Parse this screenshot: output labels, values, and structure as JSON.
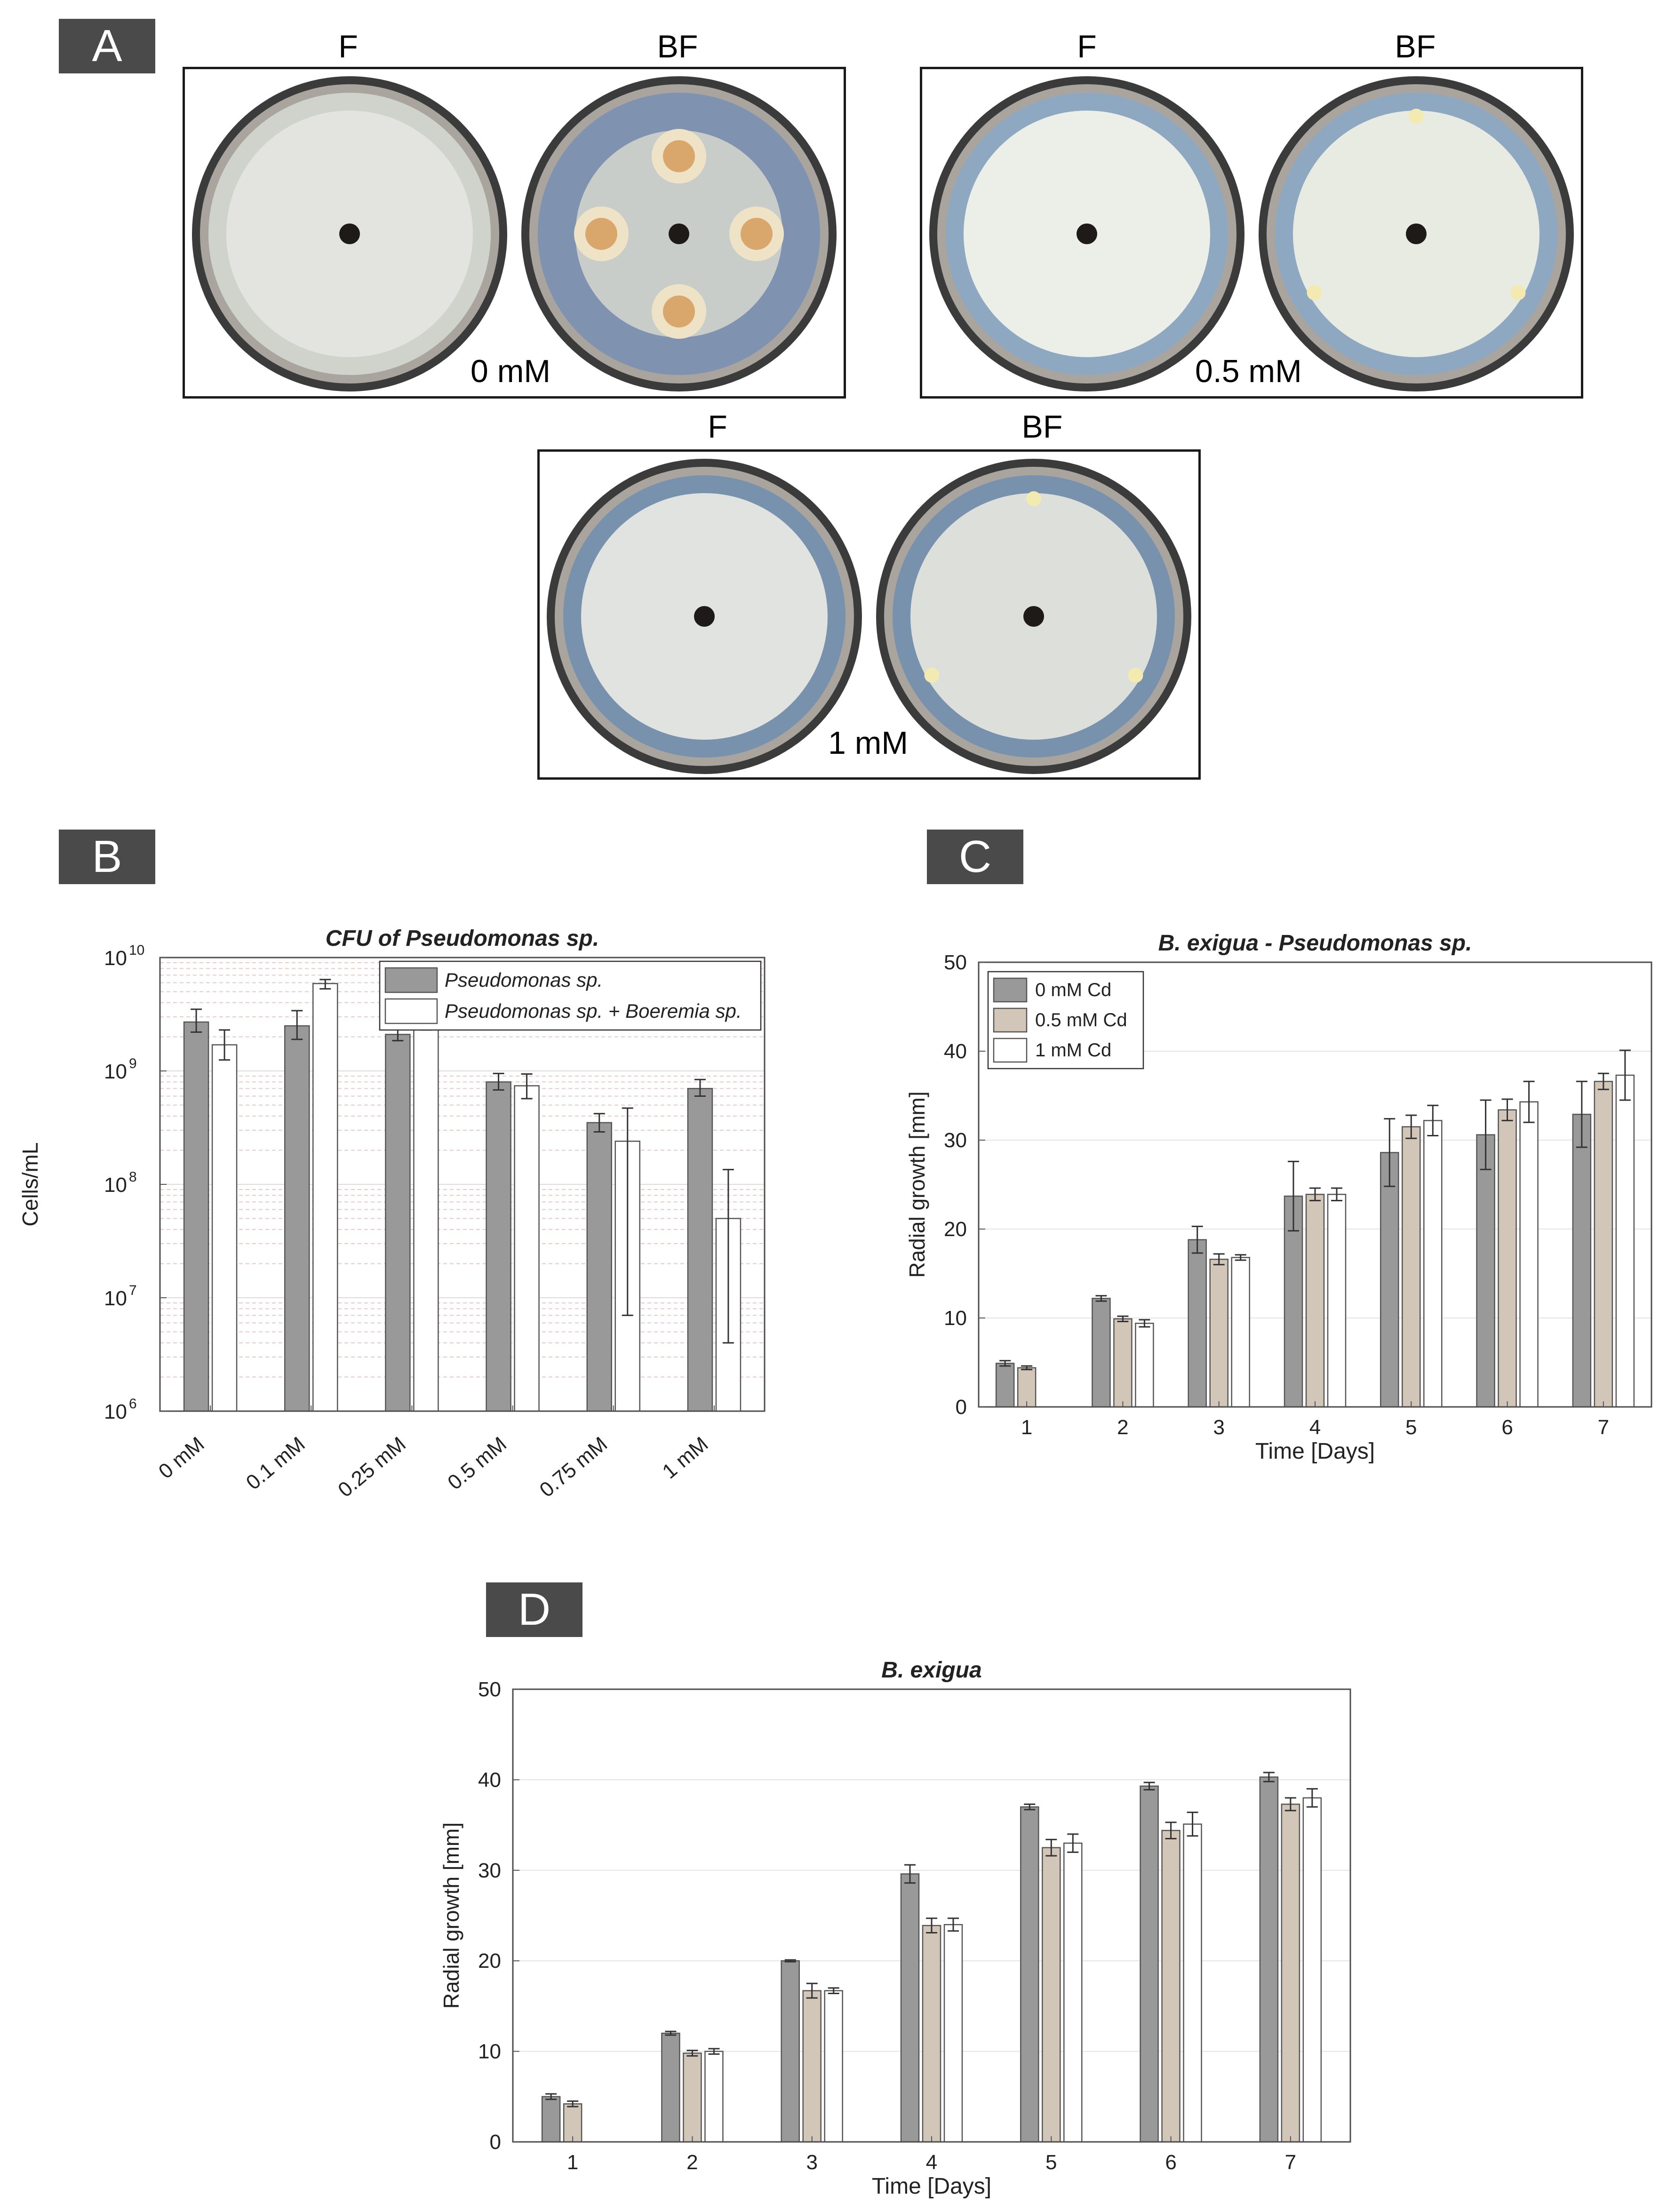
{
  "panels": {
    "A": {
      "tag": "A",
      "groups": [
        {
          "concentration": "0 mM",
          "plates": [
            {
              "label": "F",
              "colonies": 0,
              "agar": "#cfd3cc",
              "mycelium": "#e4e5df"
            },
            {
              "label": "BF",
              "colonies": 4,
              "agar": "#7f93b1",
              "mycelium": "#cdd0cb"
            }
          ]
        },
        {
          "concentration": "0.5 mM",
          "plates": [
            {
              "label": "F",
              "colonies": 0,
              "agar": "#8fa8c2",
              "mycelium": "#f1f2ea"
            },
            {
              "label": "BF",
              "colonies": 3,
              "agar": "#8fa8c2",
              "mycelium": "#eceee3"
            }
          ]
        },
        {
          "concentration": "1 mM",
          "plates": [
            {
              "label": "F",
              "colonies": 0,
              "agar": "#7891ad",
              "mycelium": "#e6e8e1"
            },
            {
              "label": "BF",
              "colonies": 3,
              "agar": "#7891ad",
              "mycelium": "#e3e5dc"
            }
          ]
        }
      ]
    },
    "B": {
      "tag": "B"
    },
    "C": {
      "tag": "C"
    },
    "D": {
      "tag": "D"
    }
  },
  "chart_data": [
    {
      "id": "B",
      "type": "bar",
      "title": "CFU of Pseudomonas sp.",
      "xlabel": "",
      "ylabel": "Cells/mL",
      "yscale": "log",
      "ylim": [
        1000000,
        10000000000
      ],
      "y_ticks": [
        {
          "label": "10",
          "exp": "6"
        },
        {
          "label": "10",
          "exp": "7"
        },
        {
          "label": "10",
          "exp": "8"
        },
        {
          "label": "10",
          "exp": "9"
        },
        {
          "label": "10",
          "exp": "10"
        }
      ],
      "categories": [
        "0 mM",
        "0.1 mM",
        "0.25 mM",
        "0.5 mM",
        "0.75 mM",
        "1 mM"
      ],
      "legend_position": "top-right",
      "grid": true,
      "series": [
        {
          "name": "Pseudomonas sp.",
          "color": "#999999",
          "values": [
            2700000000,
            2500000000,
            2100000000,
            800000000,
            350000000,
            700000000
          ],
          "err_low": [
            2200000000,
            1900000000,
            1850000000,
            680000000,
            290000000,
            600000000
          ],
          "err_high": [
            3500000000,
            3400000000,
            2400000000,
            950000000,
            420000000,
            840000000
          ]
        },
        {
          "name": "Pseudomonas sp. + Boeremia sp.",
          "color": "#ffffff",
          "values": [
            1700000000,
            5900000000,
            2900000000,
            740000000,
            240000000,
            50000000
          ],
          "err_low": [
            1250000000,
            5300000000,
            2300000000,
            570000000,
            7000000,
            4000000
          ],
          "err_high": [
            2300000000,
            6400000000,
            3800000000,
            940000000,
            470000000,
            135000000
          ]
        }
      ]
    },
    {
      "id": "C",
      "type": "bar",
      "title": "B. exigua - Pseudomonas sp.",
      "xlabel": "Time [Days]",
      "ylabel": "Radial growth [mm]",
      "ylim": [
        0,
        50
      ],
      "y_ticks": [
        "0",
        "10",
        "20",
        "30",
        "40",
        "50"
      ],
      "categories": [
        "1",
        "2",
        "3",
        "4",
        "5",
        "6",
        "7"
      ],
      "legend_position": "top-left",
      "grid": true,
      "series": [
        {
          "name": "0 mM Cd",
          "color": "#999999",
          "values": [
            4.9,
            12.2,
            18.8,
            23.7,
            28.6,
            30.6,
            32.9
          ],
          "err": [
            0.3,
            0.3,
            1.5,
            3.9,
            3.8,
            3.9,
            3.7
          ]
        },
        {
          "name": "0.5 mM Cd",
          "color": "#d2c6b8",
          "values": [
            4.4,
            9.9,
            16.6,
            23.9,
            31.5,
            33.4,
            36.6
          ],
          "err": [
            0.2,
            0.3,
            0.6,
            0.7,
            1.3,
            1.2,
            0.9
          ]
        },
        {
          "name": "1 mM Cd",
          "color": "#ffffff",
          "values": [
            0,
            9.4,
            16.8,
            23.9,
            32.2,
            34.3,
            37.3
          ],
          "err": [
            0,
            0.4,
            0.3,
            0.7,
            1.7,
            2.3,
            2.8
          ]
        }
      ]
    },
    {
      "id": "D",
      "type": "bar",
      "title": "B. exigua",
      "xlabel": "Time [Days]",
      "ylabel": "Radial growth [mm]",
      "ylim": [
        0,
        50
      ],
      "y_ticks": [
        "0",
        "10",
        "20",
        "30",
        "40",
        "50"
      ],
      "categories": [
        "1",
        "2",
        "3",
        "4",
        "5",
        "6",
        "7"
      ],
      "grid": true,
      "series": [
        {
          "name": "",
          "color": "#999999",
          "values": [
            5.0,
            12.0,
            20.0,
            29.6,
            37.0,
            39.3,
            40.3
          ],
          "err": [
            0.3,
            0.2,
            0.1,
            1.0,
            0.3,
            0.4,
            0.5
          ]
        },
        {
          "name": "",
          "color": "#d2c6b8",
          "values": [
            4.2,
            9.8,
            16.7,
            23.9,
            32.5,
            34.4,
            37.3
          ],
          "err": [
            0.3,
            0.3,
            0.8,
            0.8,
            0.9,
            0.9,
            0.7
          ]
        },
        {
          "name": "",
          "color": "#ffffff",
          "values": [
            0,
            10.0,
            16.7,
            24.0,
            33.0,
            35.1,
            38.0
          ],
          "err": [
            0,
            0.3,
            0.3,
            0.7,
            1.0,
            1.3,
            1.0
          ]
        }
      ]
    }
  ]
}
